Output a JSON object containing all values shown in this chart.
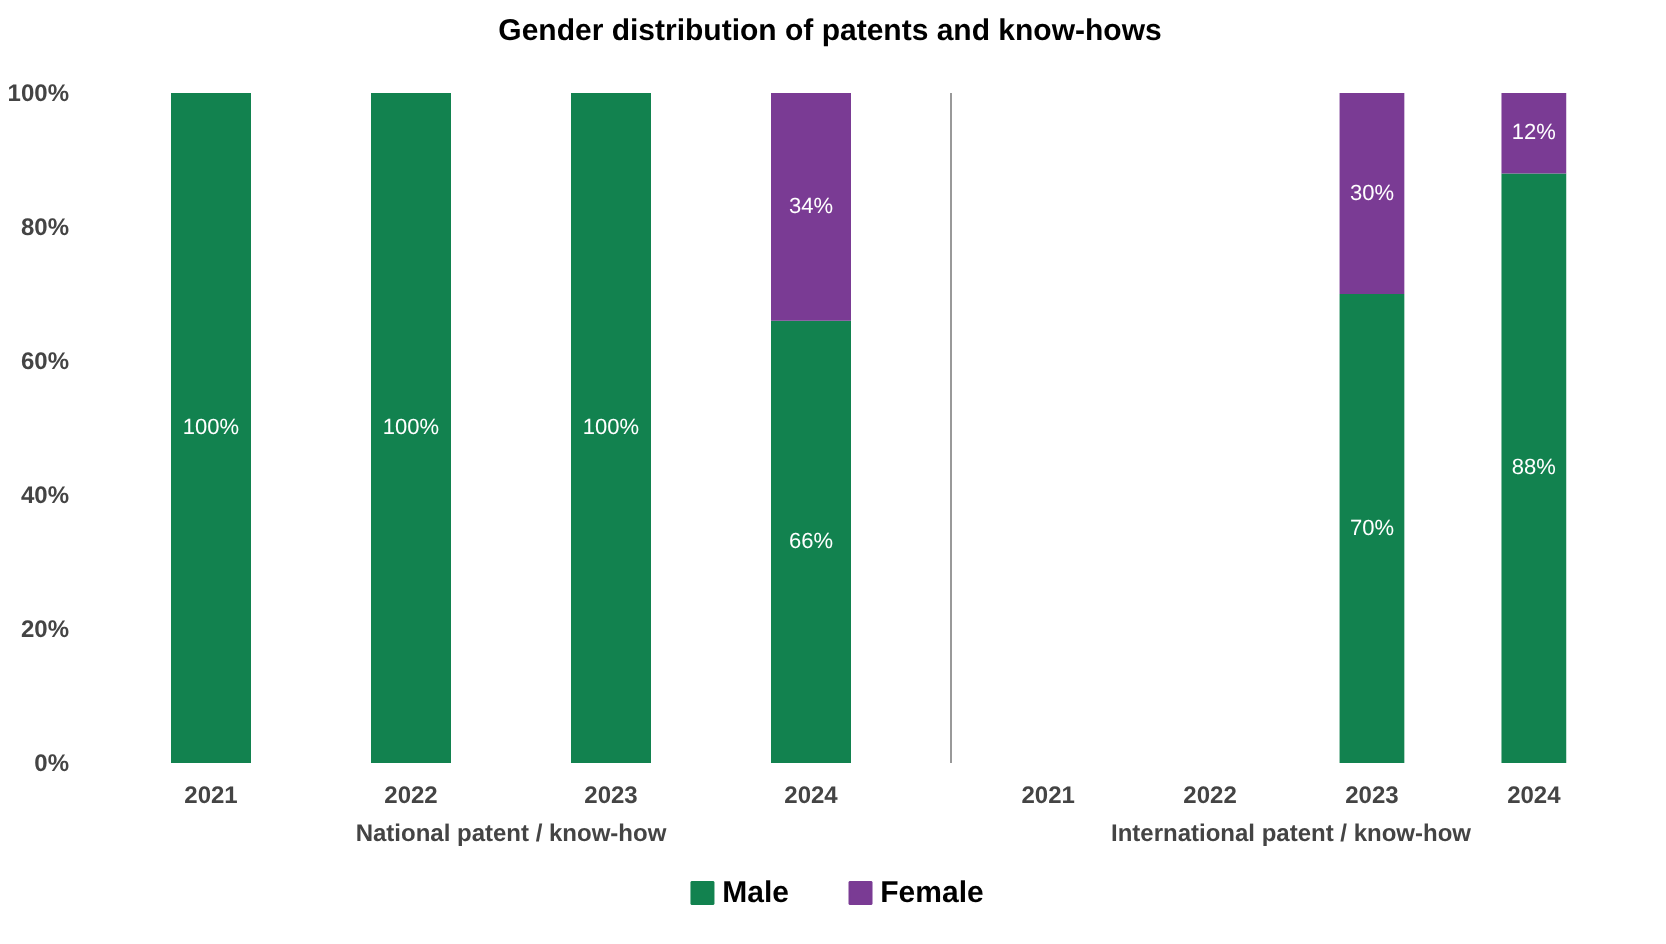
{
  "chart_data": [
    {
      "type": "bar",
      "title": "Gender distribution of patents and know-hows",
      "xlabel": "National patent / know-how",
      "categories": [
        "2021",
        "2022",
        "2023",
        "2024"
      ],
      "stacked": true,
      "ylim": [
        0,
        100
      ],
      "yticks": [
        {
          "value": 0,
          "label": "0%"
        },
        {
          "value": 20,
          "label": "20%"
        },
        {
          "value": 40,
          "label": "40%"
        },
        {
          "value": 60,
          "label": "60%"
        },
        {
          "value": 80,
          "label": "80%"
        },
        {
          "value": 100,
          "label": "100%"
        }
      ],
      "legend": "bottom",
      "series": [
        {
          "name": "Male",
          "color": "#12824f",
          "values": [
            100,
            100,
            100,
            66
          ],
          "value_labels": [
            "100%",
            "100%",
            "100%",
            "66%"
          ]
        },
        {
          "name": "Female",
          "color": "#7a3b94",
          "values": [
            null,
            null,
            null,
            34
          ],
          "value_labels": [
            null,
            null,
            null,
            "34%"
          ]
        }
      ]
    },
    {
      "type": "bar",
      "xlabel": "International patent / know-how",
      "categories": [
        "2021",
        "2022",
        "2023",
        "2024"
      ],
      "stacked": true,
      "ylim": [
        0,
        100
      ],
      "tick_labels": "x",
      "series": [
        {
          "color": "#12824f",
          "values": [
            null,
            null,
            70,
            88
          ],
          "value_labels": [
            null,
            null,
            "70%",
            "88%"
          ]
        },
        {
          "color": "#7a3b94",
          "values": [
            null,
            null,
            30,
            12
          ],
          "value_labels": [
            null,
            null,
            "30%",
            "12%"
          ]
        }
      ]
    }
  ]
}
